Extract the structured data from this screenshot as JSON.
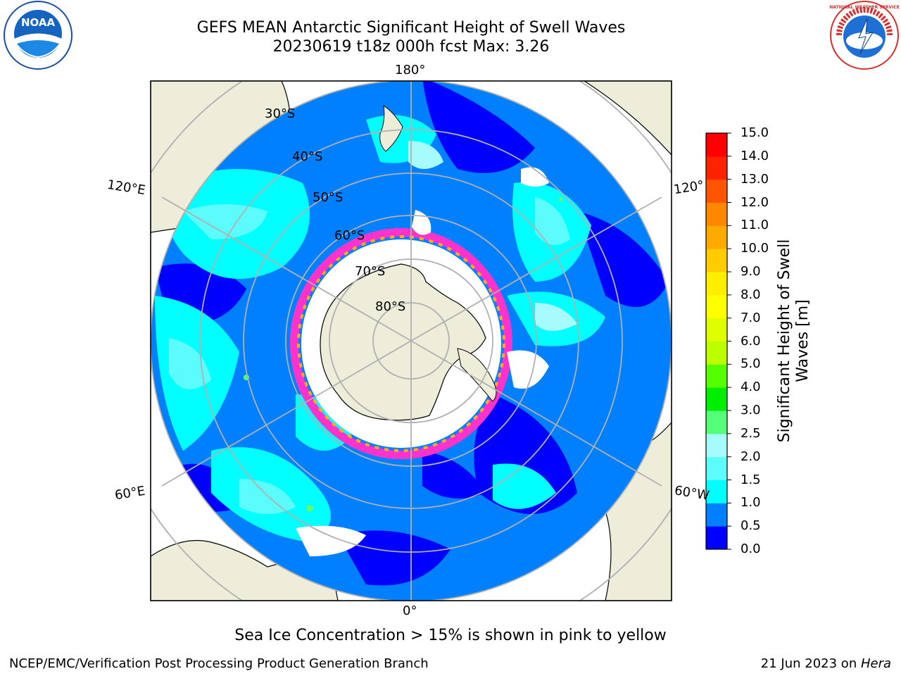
{
  "header": {
    "title_line1": "GEFS MEAN Antarctic Significant Height of Swell Waves",
    "title_line2": "20230619 t18z 000h fcst   Max: 3.26"
  },
  "logos": {
    "left": "noaa-logo",
    "right": "national-weather-service-logo",
    "left_text": "NOAA",
    "right_text": "NATIONAL WEATHER SERVICE"
  },
  "map": {
    "projection": "south-polar-stereographic",
    "longitude_labels": [
      "180°",
      "120°E",
      "120°",
      "60°E",
      "60°W",
      "0°"
    ],
    "latitude_labels": [
      "30°S",
      "40°S",
      "50°S",
      "60°S",
      "70°S",
      "80°S"
    ],
    "colors": {
      "land": "#eeedda",
      "ice_shelf": "#ffffff",
      "sea_ice_edge": [
        "#ff33cc",
        "#ffaa22",
        "#ffff33"
      ],
      "grid": "#b0b0b0"
    }
  },
  "colorbar": {
    "title_line1": "Significant Height of Swell",
    "title_line2": "Waves [m]",
    "ticks": [
      "0.0",
      "0.5",
      "1.0",
      "1.5",
      "2.0",
      "2.5",
      "3.0",
      "4.0",
      "5.0",
      "6.0",
      "7.0",
      "8.0",
      "9.0",
      "10.0",
      "11.0",
      "12.0",
      "13.0",
      "14.0",
      "15.0"
    ],
    "colors": [
      "#0000ff",
      "#0080ff",
      "#00ffff",
      "#5cfcfc",
      "#a6fcfc",
      "#55ff77",
      "#00ee00",
      "#55ff00",
      "#bbff00",
      "#dfff00",
      "#ffff00",
      "#ffee00",
      "#ffcc00",
      "#ffaa00",
      "#ff8800",
      "#ff5500",
      "#ff2200",
      "#ff0000"
    ]
  },
  "notes": {
    "ice_note": "Sea Ice Concentration > 15% is shown in pink to yellow"
  },
  "footer": {
    "left": "NCEP/EMC/Verification Post Processing Product Generation Branch",
    "right_prefix": "21 Jun 2023 on ",
    "right_host": "Hera"
  }
}
